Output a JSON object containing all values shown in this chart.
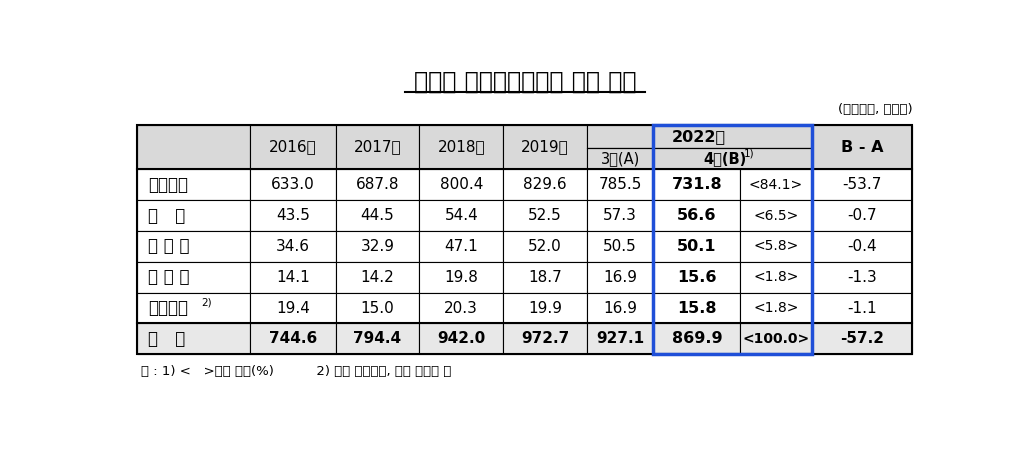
{
  "title": "통화별 거주자외화예금 잔액 추이",
  "subtitle": "(기말기준, 억달러)",
  "footnote": "주 : 1) <   >내는 비중(%)          2) 영국 파운드화, 호주 달러화 등",
  "rows": [
    {
      "label": "미달러화",
      "label_bold": true,
      "values": [
        "633.0",
        "687.8",
        "800.4",
        "829.6",
        "785.5",
        "731.8",
        "<84.1>",
        "-53.7"
      ],
      "is_total": false
    },
    {
      "label": "엔   화",
      "label_bold": true,
      "values": [
        "43.5",
        "44.5",
        "54.4",
        "52.5",
        "57.3",
        "56.6",
        "<6.5>",
        "-0.7"
      ],
      "is_total": false
    },
    {
      "label": "유 로 화",
      "label_bold": true,
      "values": [
        "34.6",
        "32.9",
        "47.1",
        "52.0",
        "50.5",
        "50.1",
        "<5.8>",
        "-0.4"
      ],
      "is_total": false
    },
    {
      "label": "위 안 화",
      "label_bold": true,
      "values": [
        "14.1",
        "14.2",
        "19.8",
        "18.7",
        "16.9",
        "15.6",
        "<1.8>",
        "-1.3"
      ],
      "is_total": false
    },
    {
      "label": "기타통화",
      "label_bold": true,
      "label_super": "2)",
      "values": [
        "19.4",
        "15.0",
        "20.3",
        "19.9",
        "16.9",
        "15.8",
        "<1.8>",
        "-1.1"
      ],
      "is_total": false
    },
    {
      "label": "합   계",
      "label_bold": true,
      "values": [
        "744.6",
        "794.4",
        "942.0",
        "972.7",
        "927.1",
        "869.9",
        "<100.0>",
        "-57.2"
      ],
      "is_total": true
    }
  ],
  "header_bg": "#D9D9D9",
  "total_row_bg": "#E8E8E8",
  "blue_color": "#1F4FD8"
}
